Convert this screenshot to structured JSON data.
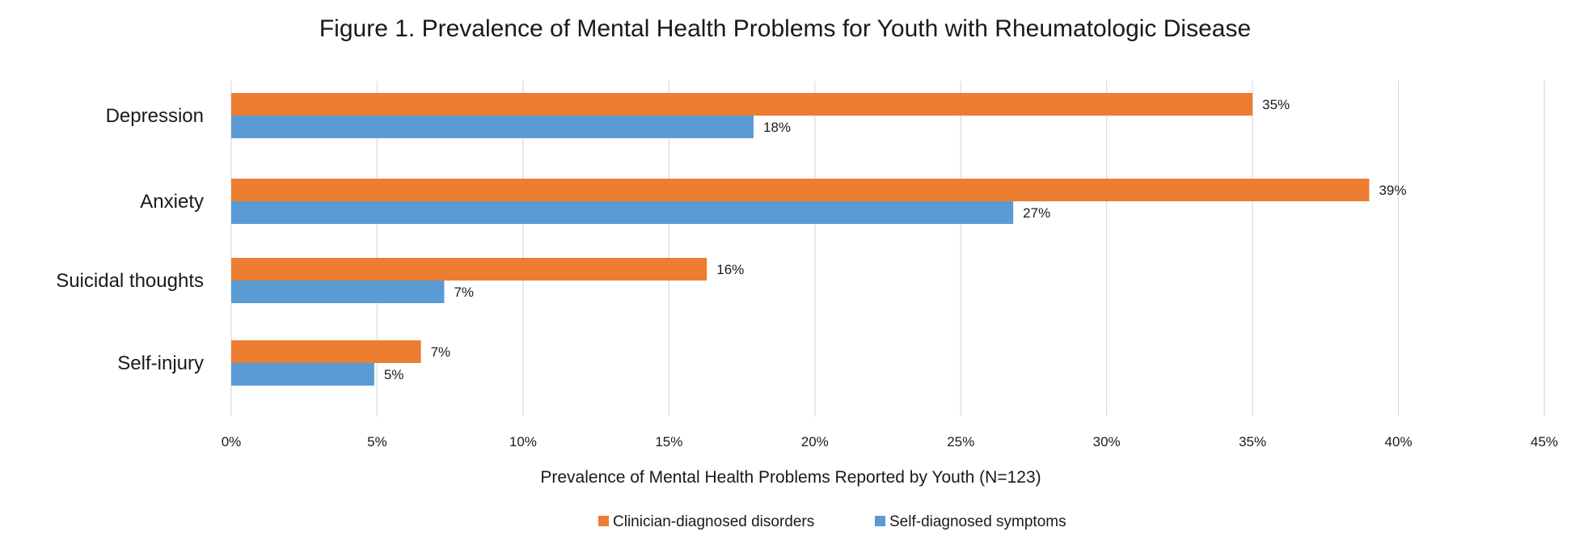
{
  "chart_data": {
    "type": "bar",
    "orientation": "horizontal",
    "title": "Figure 1. Prevalence of Mental Health Problems for Youth with Rheumatologic Disease",
    "xlabel": "Prevalence of Mental Health Problems Reported by Youth (N=123)",
    "ylabel": "",
    "categories": [
      "Depression",
      "Anxiety",
      "Suicidal thoughts",
      "Self-injury"
    ],
    "series": [
      {
        "name": "Clinician-diagnosed disorders",
        "color": "#ED7D31",
        "values": [
          35,
          39,
          16.3,
          6.5
        ],
        "labels": [
          "35%",
          "39%",
          "16%",
          "7%"
        ]
      },
      {
        "name": "Self-diagnosed symptoms",
        "color": "#5B9BD5",
        "values": [
          17.9,
          26.8,
          7.3,
          4.9
        ],
        "labels": [
          "18%",
          "27%",
          "7%",
          "5%"
        ]
      }
    ],
    "xlim": [
      0,
      45
    ],
    "ticks": [
      0,
      5,
      10,
      15,
      20,
      25,
      30,
      35,
      40,
      45
    ],
    "tick_labels": [
      "0%",
      "5%",
      "10%",
      "15%",
      "20%",
      "25%",
      "30%",
      "35%",
      "40%",
      "45%"
    ],
    "grid": true,
    "legend_position": "bottom"
  }
}
